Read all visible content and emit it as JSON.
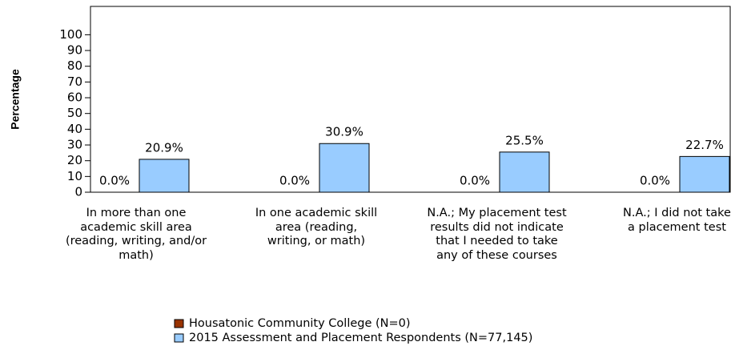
{
  "chart_data": {
    "type": "bar",
    "y_label": "Percentage",
    "categories": [
      "In more than one academic skill area (reading, writing, and/or math)",
      "In one academic skill area (reading, writing, or math)",
      "N.A.; My placement test results did not indicate that I needed to take any of these courses",
      "N.A.; I did not take a placement test"
    ],
    "series": [
      {
        "name": "Housatonic Community College (N=0)",
        "color": "#993300",
        "values": [
          0,
          0,
          0,
          0
        ],
        "value_labels": [
          "0.0%",
          "0.0%",
          "0.0%",
          "0.0%"
        ]
      },
      {
        "name": "2015 Assessment and Placement Respondents (N=77,145)",
        "color": "#99ccff",
        "values": [
          20.9,
          30.9,
          25.5,
          22.7
        ],
        "value_labels": [
          "20.9%",
          "30.9%",
          "25.5%",
          "22.7%"
        ]
      }
    ],
    "ylim": [
      0,
      118
    ],
    "yticks": [
      0,
      10,
      20,
      30,
      40,
      50,
      60,
      70,
      80,
      90,
      100
    ]
  }
}
